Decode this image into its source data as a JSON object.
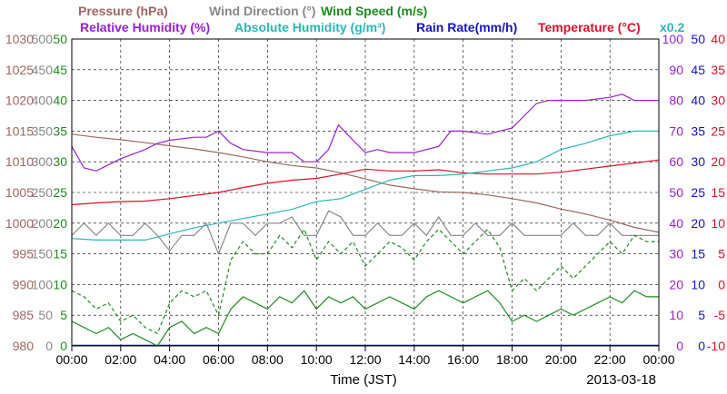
{
  "chart_data": {
    "type": "line",
    "date": "2013-03-18",
    "xlabel": "Time (JST)",
    "x_ticks": [
      "00:00",
      "02:00",
      "04:00",
      "06:00",
      "08:00",
      "10:00",
      "12:00",
      "14:00",
      "16:00",
      "18:00",
      "20:00",
      "22:00",
      "00:00"
    ],
    "x_range_hours": [
      0,
      24
    ],
    "grid": "dashed",
    "legend_rows": [
      [
        {
          "label": "Pressure (hPa)",
          "color": "#a0665f"
        },
        {
          "label": "Wind Direction (°)",
          "color": "#888888"
        },
        {
          "label": "Wind Speed (m/s)",
          "color": "#1e8c1e"
        }
      ],
      [
        {
          "label": "Relative Humidity (%)",
          "color": "#9b1fd6"
        },
        {
          "label": "Absolute Humidity (g/m³)",
          "color": "#2ab7b7"
        },
        {
          "label": "Rain Rate(mm/h)",
          "color": "#1414c8"
        },
        {
          "label": "Temperature (°C)",
          "color": "#e0102a"
        },
        {
          "label": "x0.2",
          "color": "#2ab7b7"
        }
      ]
    ],
    "axes": {
      "pressure": {
        "color": "#a0665f",
        "ticks": [
          "980",
          "985",
          "990",
          "995",
          "1000",
          "1005",
          "1010",
          "1015",
          "1020",
          "1025",
          "1030"
        ]
      },
      "wind_direction": {
        "color": "#888888",
        "ticks": [
          "0",
          "50",
          "100",
          "150",
          "200",
          "250",
          "300",
          "350",
          "400",
          "450",
          "500"
        ]
      },
      "wind_speed": {
        "color": "#1e8c1e",
        "ticks": [
          "0",
          "5",
          "10",
          "15",
          "20",
          "25",
          "30",
          "35",
          "40",
          "45",
          "50"
        ]
      },
      "relative_humidity": {
        "color": "#9b1fd6",
        "ticks": [
          "0",
          "10",
          "20",
          "30",
          "40",
          "50",
          "60",
          "70",
          "80",
          "90",
          "100"
        ]
      },
      "rain_rate": {
        "color": "#1414c8",
        "ticks": [
          "0",
          "5",
          "10",
          "15",
          "20",
          "25",
          "30",
          "35",
          "40",
          "45",
          "50"
        ]
      },
      "temperature": {
        "color": "#e0102a",
        "ticks": [
          "-10",
          "-5",
          "0",
          "5",
          "10",
          "15",
          "20",
          "25",
          "30",
          "35",
          "40"
        ]
      }
    },
    "series": [
      {
        "name": "Pressure (hPa)",
        "axis": "pressure",
        "color": "#a0665f",
        "x": [
          0,
          1,
          2,
          3,
          4,
          5,
          6,
          7,
          8,
          9,
          10,
          11,
          12,
          13,
          14,
          15,
          16,
          17,
          18,
          19,
          20,
          21,
          22,
          23,
          24
        ],
        "y": [
          1014.5,
          1014,
          1013.6,
          1013.1,
          1012.6,
          1012.1,
          1011.5,
          1010.8,
          1010,
          1009.4,
          1009,
          1008.2,
          1007.2,
          1006.2,
          1005.6,
          1005.1,
          1005,
          1004.6,
          1004,
          1003.3,
          1002.3,
          1001.5,
          1000.5,
          999.3,
          998.5
        ]
      },
      {
        "name": "Temperature (°C)",
        "axis": "temperature",
        "color": "#e0102a",
        "x": [
          0,
          1,
          2,
          3,
          4,
          5,
          6,
          7,
          8,
          9,
          10,
          11,
          12,
          13,
          14,
          15,
          16,
          17,
          18,
          19,
          20,
          21,
          22,
          23,
          24
        ],
        "y": [
          13,
          13.3,
          13.5,
          13.6,
          14,
          14.5,
          15,
          15.8,
          16.5,
          17,
          17.3,
          18,
          18.8,
          18.5,
          18.5,
          18.7,
          18.2,
          18,
          18,
          18,
          18.3,
          18.8,
          19.3,
          19.8,
          20.3
        ]
      },
      {
        "name": "Relative Humidity (%)",
        "axis": "relative_humidity",
        "color": "#9b1fd6",
        "x": [
          0,
          0.5,
          1,
          2,
          3,
          3.5,
          4,
          5,
          5.5,
          6,
          6.5,
          7,
          8,
          9,
          9.5,
          10,
          10.5,
          10.9,
          11.5,
          12,
          12.5,
          13,
          14,
          15,
          15.5,
          16,
          17,
          18,
          18.5,
          19,
          19.5,
          20,
          21,
          22,
          22.5,
          23,
          24
        ],
        "y": [
          65,
          58,
          57,
          61,
          64,
          66,
          67,
          68,
          68,
          70,
          66,
          64,
          63,
          63,
          60,
          60,
          64,
          72,
          67,
          63,
          64,
          63,
          63,
          65,
          70,
          70,
          69,
          71,
          75,
          79,
          80,
          80,
          80,
          81,
          82,
          80,
          80
        ]
      },
      {
        "name": "Absolute Humidity (g/m³)",
        "axis": "relative_humidity",
        "color": "#2ab7b7",
        "x": [
          0,
          1,
          2,
          3,
          4,
          5,
          6,
          7,
          8,
          9,
          10,
          11,
          12,
          13,
          14,
          15,
          16,
          17,
          18,
          19,
          20,
          21,
          22,
          23,
          24
        ],
        "y": [
          35,
          34.5,
          34.5,
          34.5,
          36.5,
          38.5,
          40,
          41.5,
          43,
          44.5,
          47,
          48,
          51,
          54,
          55.5,
          55.5,
          56,
          57,
          58,
          60,
          64,
          66,
          68.5,
          70,
          70
        ]
      },
      {
        "name": "Wind Direction (°)",
        "axis": "wind_direction",
        "color": "#888888",
        "x": [
          0,
          0.5,
          1,
          1.5,
          2,
          2.5,
          3,
          3.5,
          4,
          4.5,
          5,
          5.5,
          6,
          6.5,
          7,
          7.5,
          8,
          8.5,
          9,
          9.5,
          10,
          10.5,
          11,
          11.5,
          12,
          12.5,
          13,
          13.5,
          14,
          14.5,
          15,
          15.5,
          16,
          16.5,
          17,
          17.5,
          18,
          18.5,
          19,
          19.5,
          20,
          20.5,
          21,
          21.5,
          22,
          22.5,
          23,
          23.5,
          24
        ],
        "y": [
          180,
          200,
          180,
          200,
          180,
          180,
          200,
          180,
          155,
          180,
          180,
          200,
          150,
          200,
          200,
          180,
          200,
          200,
          210,
          180,
          180,
          220,
          210,
          180,
          180,
          200,
          180,
          180,
          200,
          180,
          210,
          180,
          180,
          200,
          180,
          180,
          200,
          180,
          180,
          180,
          180,
          200,
          180,
          180,
          200,
          180,
          180,
          180,
          180
        ]
      },
      {
        "name": "Wind Speed (m/s)",
        "axis": "wind_speed",
        "color": "#1e8c1e",
        "x": [
          0,
          0.5,
          1,
          1.5,
          2,
          2.5,
          3,
          3.5,
          4,
          4.5,
          5,
          5.5,
          6,
          6.5,
          7,
          7.5,
          8,
          8.5,
          9,
          9.5,
          10,
          10.5,
          11,
          11.5,
          12,
          12.5,
          13,
          13.5,
          14,
          14.5,
          15,
          15.5,
          16,
          16.5,
          17,
          17.5,
          18,
          18.5,
          19,
          19.5,
          20,
          20.5,
          21,
          21.5,
          22,
          22.5,
          23,
          23.5,
          24
        ],
        "y": [
          4,
          3,
          2,
          3,
          1,
          2,
          1,
          0,
          3,
          4,
          2,
          3,
          2,
          6,
          8,
          7,
          6,
          8,
          7,
          9,
          6,
          8,
          7,
          8,
          6,
          7,
          8,
          7,
          6,
          8,
          9,
          8,
          7,
          8,
          9,
          7,
          4,
          5,
          4,
          5,
          6,
          5,
          6,
          7,
          8,
          7,
          9,
          8,
          8
        ]
      },
      {
        "name": "Wind Speed (m/s) gust",
        "axis": "wind_speed",
        "color": "#1e8c1e",
        "style": "dashed",
        "x": [
          0,
          0.5,
          1,
          1.5,
          2,
          2.5,
          3,
          3.5,
          4,
          4.5,
          5,
          5.5,
          6,
          6.5,
          7,
          7.5,
          8,
          8.5,
          9,
          9.5,
          10,
          10.5,
          11,
          11.5,
          12,
          12.5,
          13,
          13.5,
          14,
          14.5,
          15,
          15.5,
          16,
          16.5,
          17,
          17.5,
          18,
          18.5,
          19,
          19.5,
          20,
          20.5,
          21,
          21.5,
          22,
          22.5,
          23,
          23.5,
          24
        ],
        "y": [
          9,
          8,
          6,
          7,
          4,
          5,
          3,
          2,
          7,
          9,
          8,
          9,
          5,
          14,
          17,
          15,
          15,
          18,
          16,
          19,
          14,
          17,
          15,
          17,
          13,
          15,
          17,
          16,
          14,
          17,
          19,
          17,
          15,
          17,
          19,
          16,
          9,
          11,
          9,
          11,
          13,
          11,
          13,
          15,
          17,
          15,
          18,
          17,
          17
        ]
      }
    ]
  }
}
